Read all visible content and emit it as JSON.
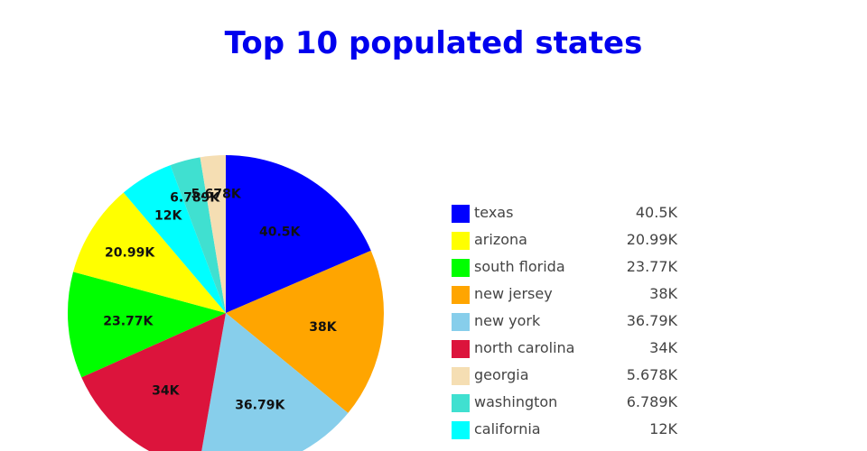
{
  "chart_data": {
    "type": "pie",
    "title": "Top 10 populated states",
    "title_color": "#0000ee",
    "legend_position": "right",
    "slices": [
      {
        "name": "texas",
        "value": 40500,
        "label": "40.5K",
        "color": "#0000ff"
      },
      {
        "name": "new jersey",
        "value": 38000,
        "label": "38K",
        "color": "#ffa500"
      },
      {
        "name": "new york",
        "value": 36790,
        "label": "36.79K",
        "color": "#87ceeb"
      },
      {
        "name": "north carolina",
        "value": 34000,
        "label": "34K",
        "color": "#dc143c"
      },
      {
        "name": "south florida",
        "value": 23770,
        "label": "23.77K",
        "color": "#00ff00"
      },
      {
        "name": "arizona",
        "value": 20990,
        "label": "20.99K",
        "color": "#ffff00"
      },
      {
        "name": "california",
        "value": 12000,
        "label": "12K",
        "color": "#00ffff"
      },
      {
        "name": "washington",
        "value": 6789,
        "label": "6.789K",
        "color": "#40e0d0"
      },
      {
        "name": "georgia",
        "value": 5678,
        "label": "5.678K",
        "color": "#f5deb3"
      }
    ],
    "legend_order": [
      "texas",
      "arizona",
      "south florida",
      "new jersey",
      "new york",
      "north carolina",
      "georgia",
      "washington",
      "california"
    ]
  }
}
